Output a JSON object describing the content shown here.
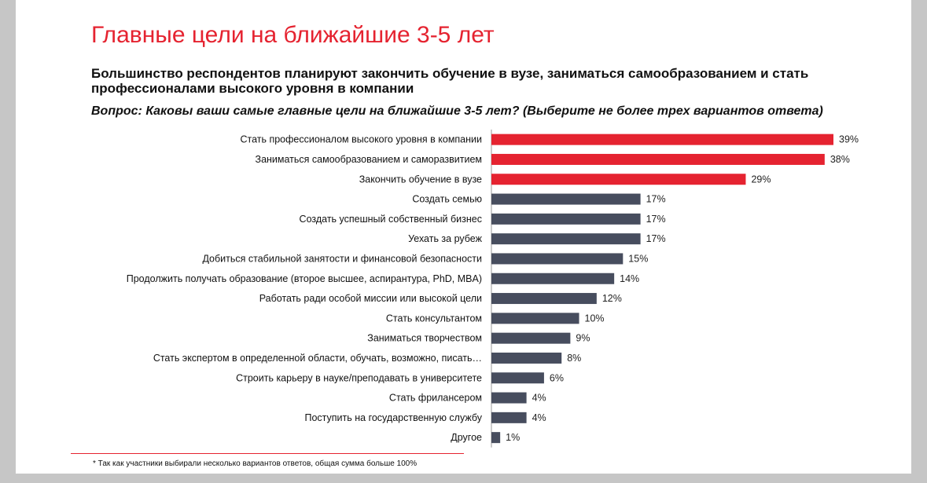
{
  "title": "Главные цели на ближайшие 3-5 лет",
  "subtitle": "Большинство респондентов планируют закончить обучение в вузе, заниматься самообразованием и стать профессионалами высокого уровня в компании",
  "question": "Вопрос: Каковы ваши самые главные цели на ближайшие 3-5 лет? (Выберите не более трех вариантов ответа)",
  "footnote": "* Так как участники выбирали несколько вариантов ответов, общая сумма больше 100%",
  "colors": {
    "highlight": "#e52330",
    "default": "#474d5e"
  },
  "chart_data": {
    "type": "bar",
    "orientation": "horizontal",
    "categories": [
      "Стать профессионалом высокого уровня в компании",
      "Заниматься самообразованием и саморазвитием",
      "Закончить обучение в вузе",
      "Создать семью",
      "Создать успешный собственный бизнес",
      "Уехать за рубеж",
      "Добиться стабильной занятости и финансовой безопасности",
      "Продолжить получать образование (второе высшее, аспирантура, PhD, MBA)",
      "Работать ради особой миссии или высокой цели",
      "Стать консультантом",
      "Заниматься творчеством",
      "Стать экспертом в определенной области, обучать, возможно, писать…",
      "Строить карьеру в науке/преподавать в университете",
      "Стать фрилансером",
      "Поступить на государственную службу",
      "Другое"
    ],
    "values": [
      39,
      38,
      29,
      17,
      17,
      17,
      15,
      14,
      12,
      10,
      9,
      8,
      6,
      4,
      4,
      1
    ],
    "value_labels": [
      "39%",
      "38%",
      "29%",
      "17%",
      "17%",
      "17%",
      "15%",
      "14%",
      "12%",
      "10%",
      "9%",
      "8%",
      "6%",
      "4%",
      "4%",
      "1%"
    ],
    "highlighted": [
      true,
      true,
      true,
      false,
      false,
      false,
      false,
      false,
      false,
      false,
      false,
      false,
      false,
      false,
      false,
      false
    ],
    "xlim": [
      0,
      39
    ],
    "grid": false,
    "legend": "none"
  }
}
